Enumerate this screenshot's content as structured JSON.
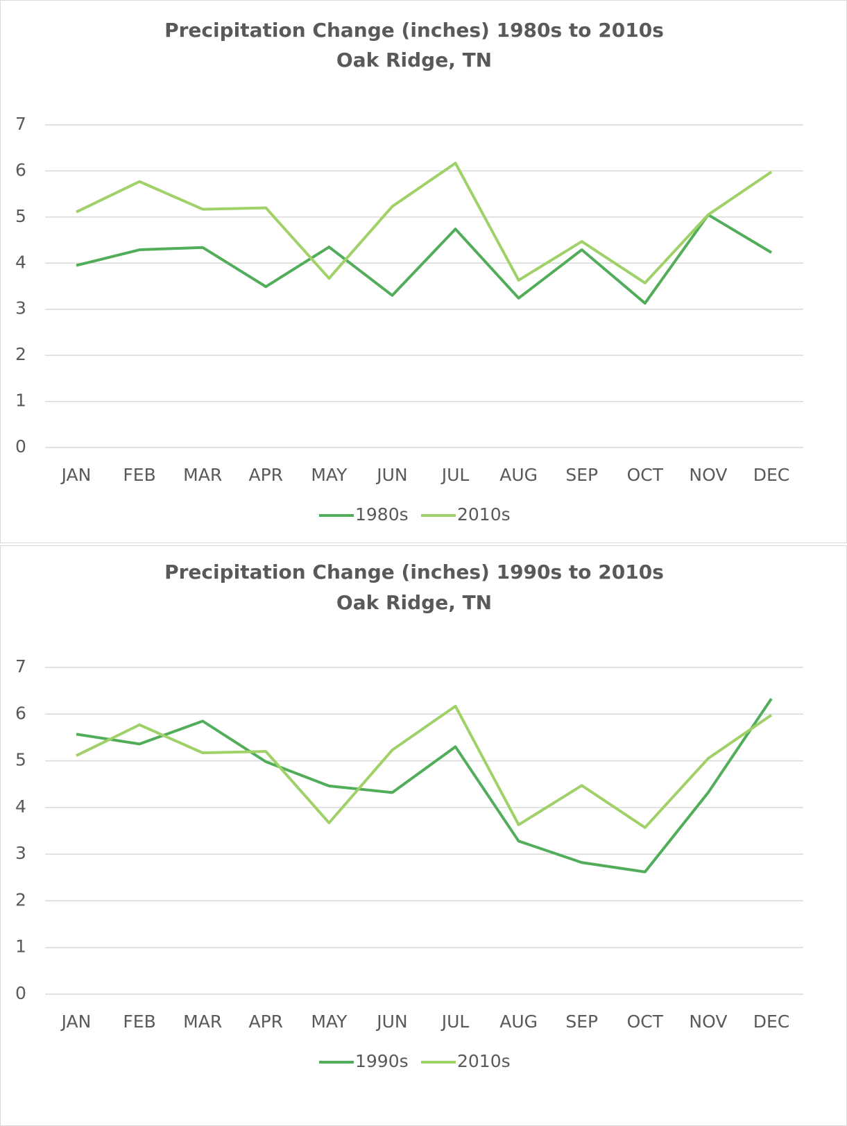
{
  "chart_data": [
    {
      "type": "line",
      "title": "Precipitation Change (inches) 1980s to 2010s",
      "subtitle": "Oak Ridge, TN",
      "categories": [
        "JAN",
        "FEB",
        "MAR",
        "APR",
        "MAY",
        "JUN",
        "JUL",
        "AUG",
        "SEP",
        "OCT",
        "NOV",
        "DEC"
      ],
      "series": [
        {
          "name": "1980s",
          "color": "#52ad5a",
          "values": [
            3.95,
            4.29,
            4.34,
            3.49,
            4.35,
            3.3,
            4.74,
            3.24,
            4.29,
            3.13,
            5.05,
            4.23
          ]
        },
        {
          "name": "2010s",
          "color": "#9fd168",
          "values": [
            5.11,
            5.77,
            5.17,
            5.2,
            3.67,
            5.23,
            6.17,
            3.63,
            4.47,
            3.57,
            5.05,
            5.98
          ]
        }
      ],
      "ylim": [
        0,
        7
      ],
      "yticks": [
        0,
        1,
        2,
        3,
        4,
        5,
        6,
        7
      ],
      "grid": true,
      "legend": "bottom"
    },
    {
      "type": "line",
      "title": "Precipitation Change (inches) 1990s to 2010s",
      "subtitle": "Oak Ridge, TN",
      "categories": [
        "JAN",
        "FEB",
        "MAR",
        "APR",
        "MAY",
        "JUN",
        "JUL",
        "AUG",
        "SEP",
        "OCT",
        "NOV",
        "DEC"
      ],
      "series": [
        {
          "name": "1990s",
          "color": "#52ad5a",
          "values": [
            5.57,
            5.36,
            5.85,
            4.98,
            4.46,
            4.32,
            5.3,
            3.28,
            2.82,
            2.62,
            4.32,
            6.33
          ]
        },
        {
          "name": "2010s",
          "color": "#9fd168",
          "values": [
            5.11,
            5.77,
            5.17,
            5.2,
            3.67,
            5.23,
            6.17,
            3.63,
            4.47,
            3.57,
            5.05,
            5.98
          ]
        }
      ],
      "ylim": [
        0,
        7
      ],
      "yticks": [
        0,
        1,
        2,
        3,
        4,
        5,
        6,
        7
      ],
      "grid": true,
      "legend": "bottom"
    }
  ]
}
